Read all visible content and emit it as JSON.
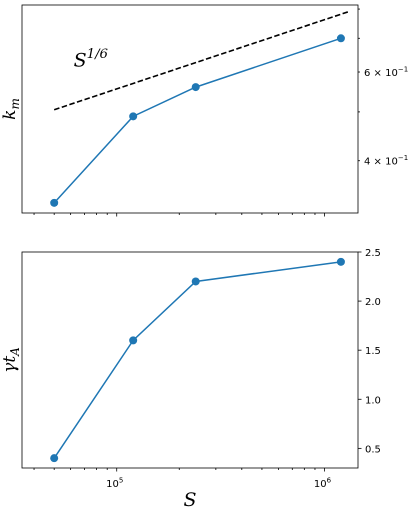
{
  "chart_data": [
    {
      "type": "line",
      "xlabel": "",
      "ylabel": "k_m",
      "x_scale": "log",
      "y_scale": "log",
      "xlim": [
        35000,
        1450000
      ],
      "ylim": [
        0.315,
        0.815
      ],
      "grid": false,
      "yaxis_position": "right",
      "y_ticks": [
        {
          "value": 0.4,
          "base": "4",
          "exp": "−1"
        },
        {
          "value": 0.6,
          "base": "6",
          "exp": "−1"
        }
      ],
      "series": [
        {
          "x": [
            50000,
            120000,
            240000,
            1200000
          ],
          "y": [
            0.33,
            0.49,
            0.56,
            0.7
          ],
          "style": "solid-markers",
          "color": "#1f77b4"
        },
        {
          "x": [
            50000,
            1300000
          ],
          "y": [
            0.505,
            0.79
          ],
          "style": "dashed",
          "color": "#000000"
        }
      ],
      "annotations": [
        {
          "text": "S",
          "sup": "1/6",
          "x": 62000,
          "y": 0.615
        }
      ]
    },
    {
      "type": "line",
      "xlabel": "S",
      "ylabel": "γt_A",
      "x_scale": "log",
      "y_scale": "linear",
      "xlim": [
        35000,
        1450000
      ],
      "ylim": [
        0.3,
        2.5
      ],
      "grid": false,
      "yaxis_position": "right",
      "y_ticks": [
        {
          "value": 0.5,
          "label": "0.5"
        },
        {
          "value": 1.0,
          "label": "1.0"
        },
        {
          "value": 1.5,
          "label": "1.5"
        },
        {
          "value": 2.0,
          "label": "2.0"
        },
        {
          "value": 2.5,
          "label": "2.5"
        }
      ],
      "x_ticks": [
        {
          "value": 100000,
          "base": "10",
          "exp": "5"
        },
        {
          "value": 1000000,
          "base": "10",
          "exp": "6"
        }
      ],
      "series": [
        {
          "x": [
            50000,
            120000,
            240000,
            1200000
          ],
          "y": [
            0.4,
            1.6,
            2.2,
            2.4
          ],
          "style": "solid-markers",
          "color": "#1f77b4"
        }
      ]
    }
  ]
}
